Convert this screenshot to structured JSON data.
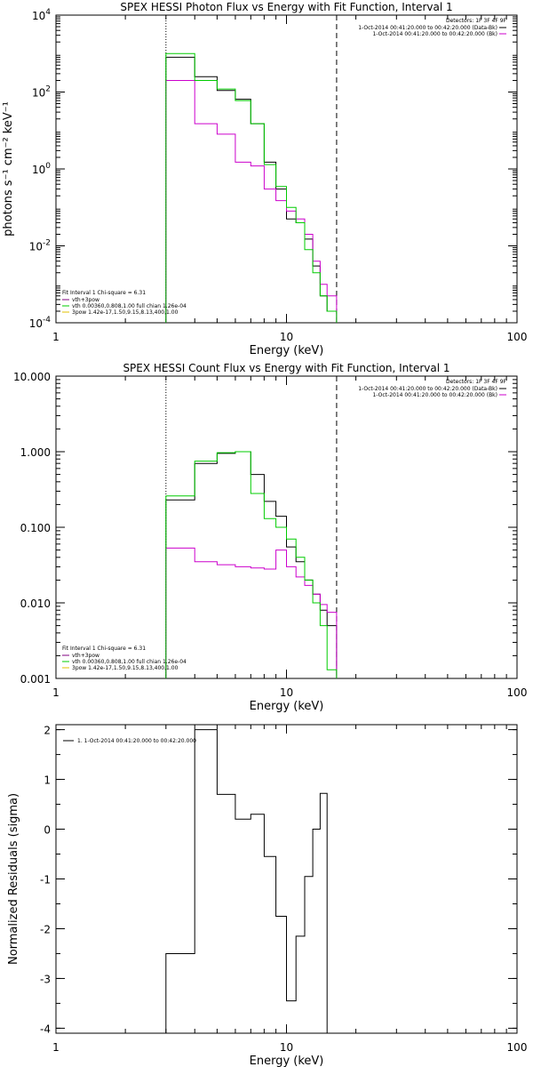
{
  "colors": {
    "data": "#000000",
    "total": "#800080",
    "vth": "#00cc00",
    "bpow": "#e0c000",
    "sel": "#cc00cc",
    "bk": "#ffffff"
  },
  "chart_data": [
    {
      "type": "line",
      "title": "SPEX HESSI Photon Flux vs Energy with Fit Function, Interval 1",
      "xlabel": "Energy (keV)",
      "ylabel": "photons s⁻¹ cm⁻² keV⁻¹",
      "xscale": "log",
      "yscale": "log",
      "xlim": [
        1,
        100
      ],
      "ylim": [
        0.0001,
        10000
      ],
      "xticks": [
        "1",
        "10",
        "100"
      ],
      "yticks": [
        {
          "v": 0.0001,
          "b": "10",
          "e": "-4"
        },
        {
          "v": 0.01,
          "b": "10",
          "e": "-2"
        },
        {
          "v": 1,
          "b": "10",
          "e": "0"
        },
        {
          "v": 100,
          "b": "10",
          "e": "2"
        },
        {
          "v": 10000,
          "b": "10",
          "e": "4"
        }
      ],
      "fit_range": [
        3,
        16.5
      ],
      "bin_edges": [
        3,
        4,
        5,
        6,
        7,
        8,
        9,
        10,
        11,
        12,
        13,
        14,
        15,
        16.5
      ],
      "series": [
        {
          "name": "1-Oct-2014 00:41:20.000 to 00:42:20.000 (Data-Bk)",
          "color": "#000000",
          "values": [
            800,
            250,
            110,
            65,
            15,
            1.5,
            0.3,
            0.05,
            0.04,
            0.015,
            0.003,
            0.0005,
            0.0002
          ]
        },
        {
          "name": "1-Oct-2014 00:41:20.000 to 00:42:20.000 (Bk)",
          "color": "#cc00cc",
          "values": [
            200,
            15,
            8,
            1.5,
            1.2,
            0.3,
            0.15,
            0.08,
            0.05,
            0.02,
            0.004,
            0.001,
            0.0005
          ]
        },
        {
          "name": "vth 0.00360,0.808,1.00  full chian 1.26e-04",
          "color": "#00cc00",
          "values": [
            1000,
            200,
            120,
            60,
            15,
            1.3,
            0.35,
            0.1,
            0.04,
            0.008,
            0.002,
            0.0005,
            0.0002
          ]
        }
      ],
      "annotations": {
        "detectors": "Detectors: 1F 3F 4F 9F",
        "legend_lines": [
          {
            "text": "1-Oct-2014 00:41:20.000 to 00:42:20.000 (Data-Bk)",
            "color": "#000000"
          },
          {
            "text": "1-Oct-2014 00:41:20.000 to 00:42:20.000 (Bk)",
            "color": "#cc00cc"
          }
        ],
        "fit_info": "Fit Interval 1   Chi-square = 6.31",
        "fit_lines": [
          {
            "text": "vth+3pow",
            "color": "#800080"
          },
          {
            "text": "vth 0.00360,0.808,1.00  full chian 1.26e-04",
            "color": "#00cc00"
          },
          {
            "text": "3pow 1.42e-17,1.50,9.15,8.13,400,1.00",
            "color": "#e0c000"
          }
        ]
      }
    },
    {
      "type": "line",
      "title": "SPEX HESSI Count Flux vs Energy with Fit Function, Interval 1",
      "xlabel": "Energy (keV)",
      "ylabel": "",
      "xscale": "log",
      "yscale": "log",
      "xlim": [
        1,
        100
      ],
      "ylim": [
        0.001,
        10
      ],
      "xticks": [
        "1",
        "10",
        "100"
      ],
      "yticks": [
        {
          "v": 0.001,
          "t": "0.001"
        },
        {
          "v": 0.01,
          "t": "0.010"
        },
        {
          "v": 0.1,
          "t": "0.100"
        },
        {
          "v": 1,
          "t": "1.000"
        },
        {
          "v": 10,
          "t": "10.000"
        }
      ],
      "fit_range": [
        3,
        16.5
      ],
      "bin_edges": [
        3,
        4,
        5,
        6,
        7,
        8,
        9,
        10,
        11,
        12,
        13,
        14,
        15,
        16.5
      ],
      "series": [
        {
          "name": "1-Oct-2014 00:41:20.000 to 00:42:20.000 (Data-Bk)",
          "color": "#000000",
          "values": [
            0.23,
            0.7,
            0.95,
            1.0,
            0.5,
            0.22,
            0.14,
            0.055,
            0.035,
            0.02,
            0.013,
            0.008,
            0.005
          ]
        },
        {
          "name": "1-Oct-2014 00:41:20.000 to 00:42:20.000 (Bk)",
          "color": "#cc00cc",
          "values": [
            0.053,
            0.035,
            0.032,
            0.03,
            0.029,
            0.028,
            0.05,
            0.03,
            0.022,
            0.017,
            0.013,
            0.0095,
            0.0075
          ]
        },
        {
          "name": "vth 0.00360,0.808,1.00  full chian 1.26e-04",
          "color": "#00cc00",
          "values": [
            0.26,
            0.75,
            0.97,
            1.0,
            0.28,
            0.13,
            0.1,
            0.07,
            0.04,
            0.02,
            0.01,
            0.005,
            0.0013
          ]
        }
      ],
      "annotations": {
        "detectors": "Detectors: 1F 3F 4F 9F",
        "legend_lines": [
          {
            "text": "1-Oct-2014 00:41:20.000 to 00:42:20.000 (Data-Bk)",
            "color": "#000000"
          },
          {
            "text": "1-Oct-2014 00:41:20.000 to 00:42:20.000 (Bk)",
            "color": "#cc00cc"
          }
        ],
        "fit_info": "Fit Interval 1   Chi-square = 6.31",
        "fit_lines": [
          {
            "text": "vth+3pow",
            "color": "#800080"
          },
          {
            "text": "vth 0.00360,0.808,1.00  full chian 1.26e-04",
            "color": "#00cc00"
          },
          {
            "text": "3pow 1.42e-17,1.50,9.15,8.13,400,1.00",
            "color": "#e0c000"
          }
        ]
      }
    },
    {
      "type": "line",
      "title": "",
      "xlabel": "Energy (keV)",
      "ylabel": "Normalized Residuals (sigma)",
      "xscale": "log",
      "yscale": "linear",
      "xlim": [
        1,
        100
      ],
      "ylim": [
        -4.1,
        2.1
      ],
      "xticks": [
        "1",
        "10",
        "100"
      ],
      "yticks": [
        {
          "v": -4,
          "t": "-4"
        },
        {
          "v": -3,
          "t": "-3"
        },
        {
          "v": -2,
          "t": "-2"
        },
        {
          "v": -1,
          "t": "-1"
        },
        {
          "v": 0,
          "t": "0"
        },
        {
          "v": 1,
          "t": "1"
        },
        {
          "v": 2,
          "t": "2"
        }
      ],
      "bin_edges": [
        3,
        4,
        5,
        6,
        7,
        8,
        9,
        10,
        11,
        12,
        13,
        14,
        15,
        16.5
      ],
      "series": [
        {
          "name": "1.  1-Oct-2014 00:41:20.000 to 00:42:20.000",
          "color": "#000000",
          "values": [
            -2.5,
            2.0,
            0.7,
            0.2,
            0.3,
            -0.55,
            -1.75,
            -3.45,
            -2.15,
            -0.95,
            0.0,
            0.72,
            null
          ]
        }
      ],
      "annotations": {
        "legend_lines": [
          {
            "text": "1.  1-Oct-2014 00:41:20.000 to 00:42:20.000",
            "color": "#000000"
          }
        ]
      }
    }
  ]
}
